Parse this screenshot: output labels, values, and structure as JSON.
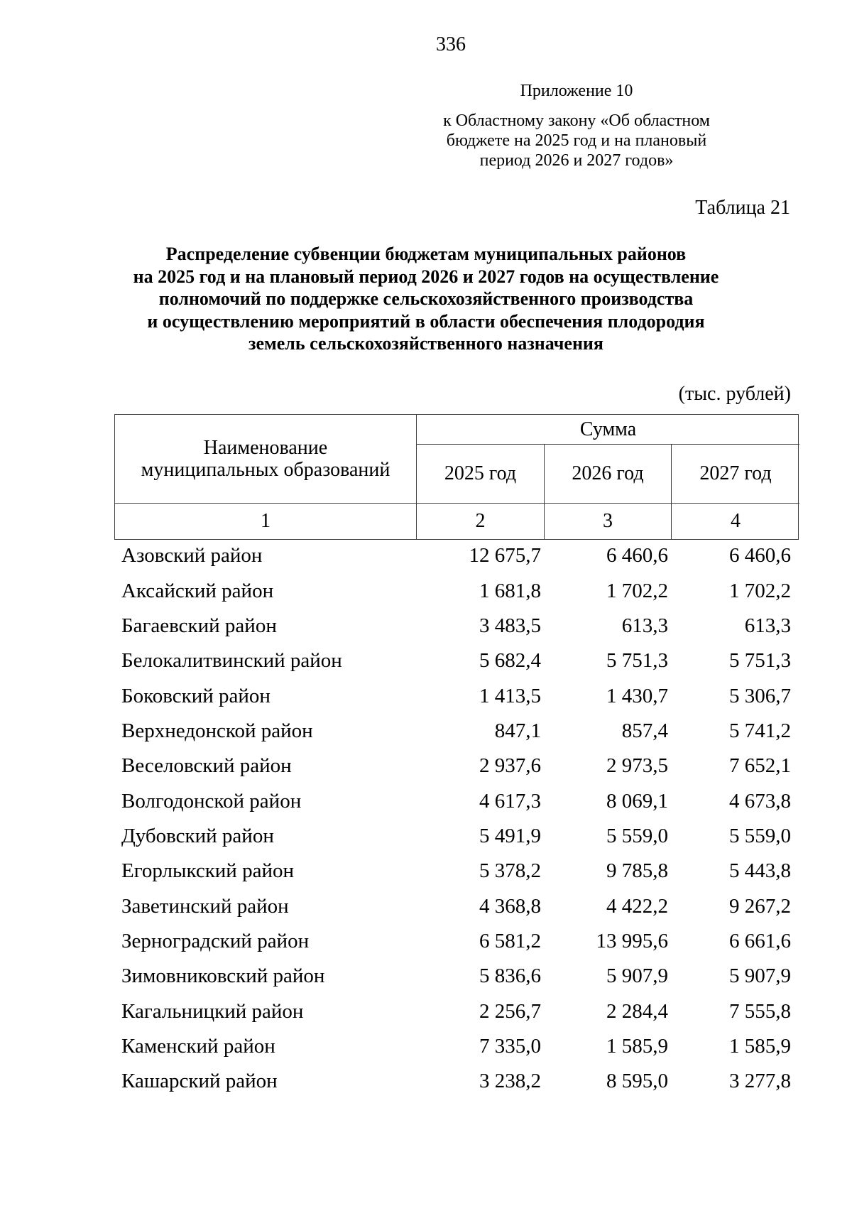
{
  "page": {
    "number": "336"
  },
  "appendix": {
    "label": "Приложение 10",
    "law_lines": [
      "к Областному закону «Об областном",
      "бюджете на 2025 год и на плановый",
      "период 2026 и 2027 годов»"
    ]
  },
  "table_caption": "Таблица 21",
  "title_lines": [
    "Распределение субвенции бюджетам муниципальных районов",
    "на 2025 год и на плановый период 2026 и 2027 годов на осуществление",
    "полномочий по поддержке сельскохозяйственного производства",
    "и осуществлению мероприятий в области обеспечения плодородия",
    "земель сельскохозяйственного назначения"
  ],
  "units": "(тыс. рублей)",
  "table": {
    "name_header": "Наименование муниципальных образований",
    "sum_header": "Сумма",
    "year_headers": [
      "2025 год",
      "2026 год",
      "2027 год"
    ],
    "column_numbers": [
      "1",
      "2",
      "3",
      "4"
    ],
    "rows": [
      {
        "name": "Азовский район",
        "y2025": "12 675,7",
        "y2026": "6 460,6",
        "y2027": "6 460,6"
      },
      {
        "name": "Аксайский район",
        "y2025": "1 681,8",
        "y2026": "1 702,2",
        "y2027": "1 702,2"
      },
      {
        "name": "Багаевский район",
        "y2025": "3 483,5",
        "y2026": "613,3",
        "y2027": "613,3"
      },
      {
        "name": "Белокалитвинский район",
        "y2025": "5 682,4",
        "y2026": "5 751,3",
        "y2027": "5 751,3"
      },
      {
        "name": "Боковский район",
        "y2025": "1 413,5",
        "y2026": "1 430,7",
        "y2027": "5 306,7"
      },
      {
        "name": "Верхнедонской район",
        "y2025": "847,1",
        "y2026": "857,4",
        "y2027": "5 741,2"
      },
      {
        "name": "Веселовский район",
        "y2025": "2 937,6",
        "y2026": "2 973,5",
        "y2027": "7 652,1"
      },
      {
        "name": "Волгодонской район",
        "y2025": "4 617,3",
        "y2026": "8 069,1",
        "y2027": "4 673,8"
      },
      {
        "name": "Дубовский район",
        "y2025": "5 491,9",
        "y2026": "5 559,0",
        "y2027": "5 559,0"
      },
      {
        "name": "Егорлыкский район",
        "y2025": "5 378,2",
        "y2026": "9 785,8",
        "y2027": "5 443,8"
      },
      {
        "name": "Заветинский район",
        "y2025": "4 368,8",
        "y2026": "4 422,2",
        "y2027": "9 267,2"
      },
      {
        "name": "Зерноградский район",
        "y2025": "6 581,2",
        "y2026": "13 995,6",
        "y2027": "6 661,6"
      },
      {
        "name": "Зимовниковский район",
        "y2025": "5 836,6",
        "y2026": "5 907,9",
        "y2027": "5 907,9"
      },
      {
        "name": "Кагальницкий район",
        "y2025": "2 256,7",
        "y2026": "2 284,4",
        "y2027": "7 555,8"
      },
      {
        "name": "Каменский район",
        "y2025": "7 335,0",
        "y2026": "1 585,9",
        "y2027": "1 585,9"
      },
      {
        "name": "Кашарский район",
        "y2025": "3 238,2",
        "y2026": "8 595,0",
        "y2027": "3 277,8"
      }
    ]
  }
}
